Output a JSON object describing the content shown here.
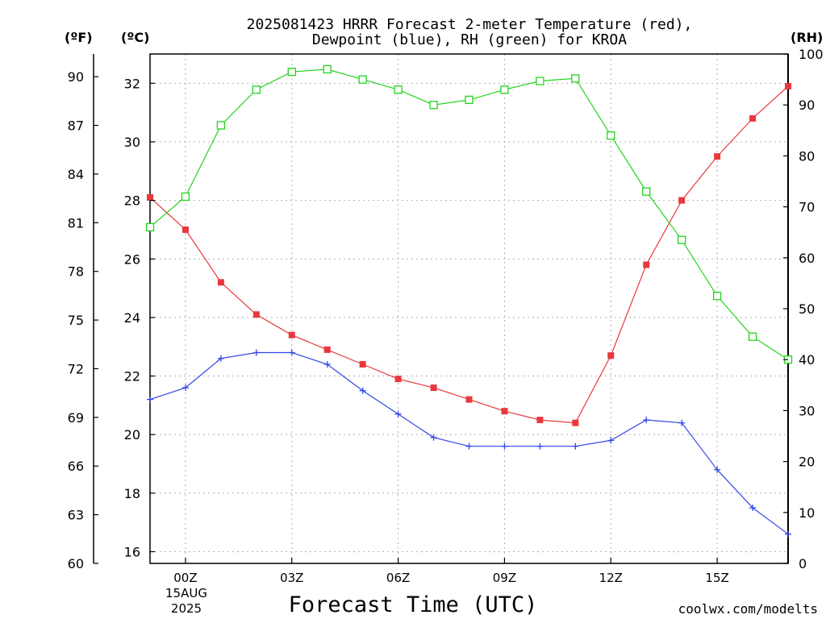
{
  "chart_data": {
    "type": "line",
    "title_line1": "2025081423 HRRR Forecast 2-meter Temperature (red),",
    "title_line2": "Dewpoint (blue), RH (green) for KROA",
    "xlabel": "Forecast Time (UTC)",
    "left_outer_axis_label": "(ºF)",
    "left_inner_axis_label": "(ºC)",
    "right_axis_label": "(RH)",
    "credit": "coolwx.com/modelts",
    "x_tick_labels": [
      "00Z",
      "03Z",
      "06Z",
      "09Z",
      "12Z",
      "15Z"
    ],
    "x_date_line1": "15AUG",
    "x_date_line2": "2025",
    "fahrenheit_ticks": [
      60,
      63,
      66,
      69,
      72,
      75,
      78,
      81,
      84,
      87,
      90
    ],
    "celsius_ticks": [
      16,
      18,
      20,
      22,
      24,
      26,
      28,
      30,
      32
    ],
    "rh_ticks": [
      0,
      10,
      20,
      30,
      40,
      50,
      60,
      70,
      80,
      90,
      100
    ],
    "celsius_range": [
      15.6,
      33.0
    ],
    "rh_range": [
      0,
      100
    ],
    "fahrenheit_range": [
      60,
      91.4
    ],
    "hour_range": [
      -1,
      17
    ],
    "grid": true,
    "colors": {
      "temperature": "#e8383d",
      "dewpoint": "#3046e8",
      "rh": "#22d41e",
      "credit": "#e03030",
      "grid": "#b0b0b0"
    },
    "series": [
      {
        "key": "temperature",
        "hours": [
          -1,
          0,
          1,
          2,
          3,
          4,
          5,
          6,
          7,
          8,
          9,
          10,
          11,
          12,
          13,
          14,
          15,
          16,
          17
        ],
        "values": [
          28.1,
          27.0,
          25.2,
          24.1,
          23.4,
          22.9,
          22.4,
          21.9,
          21.6,
          21.2,
          20.8,
          20.5,
          20.4,
          22.7,
          25.8,
          28.0,
          29.5,
          30.8,
          31.9
        ]
      },
      {
        "key": "dewpoint",
        "hours": [
          -1,
          0,
          1,
          2,
          3,
          4,
          5,
          6,
          7,
          8,
          9,
          10,
          11,
          12,
          13,
          14,
          15,
          16,
          17
        ],
        "values": [
          21.2,
          21.6,
          22.6,
          22.8,
          22.8,
          22.4,
          21.5,
          20.7,
          19.9,
          19.6,
          19.6,
          19.6,
          19.6,
          19.8,
          20.5,
          20.4,
          18.8,
          17.5,
          16.6
        ]
      },
      {
        "key": "rh",
        "hours": [
          -1,
          0,
          1,
          2,
          3,
          4,
          5,
          6,
          7,
          8,
          9,
          10,
          11,
          12,
          13,
          14,
          15,
          16,
          17
        ],
        "values": [
          66,
          72,
          86,
          93,
          96.5,
          97,
          95,
          93,
          90,
          91,
          93,
          94.7,
          95.2,
          84,
          73,
          63.5,
          52.5,
          44.5,
          40
        ]
      }
    ]
  }
}
